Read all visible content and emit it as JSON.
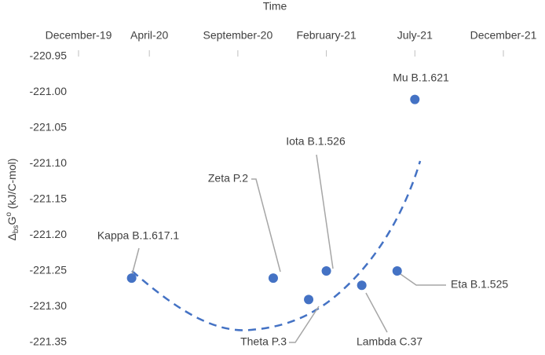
{
  "chart_data": {
    "type": "scatter",
    "xlabel": "Time",
    "ylabel": [
      "Δ",
      "bs",
      "G",
      "o",
      " (kJ/C-mol)"
    ],
    "xlim": [
      "2019-12",
      "2021-12"
    ],
    "xticks": [
      {
        "value": "2019-12",
        "label": "December-19"
      },
      {
        "value": "2020-04",
        "label": "April-20"
      },
      {
        "value": "2020-09",
        "label": "September-20"
      },
      {
        "value": "2021-02",
        "label": "February-21"
      },
      {
        "value": "2021-07",
        "label": "July-21"
      },
      {
        "value": "2021-12",
        "label": "December-21"
      }
    ],
    "ylim": [
      -221.35,
      -220.95
    ],
    "yticks": [
      -220.95,
      {
        "value": -221,
        "label": "-221.00"
      },
      -221.05,
      {
        "value": -221.1,
        "label": "-221.10"
      },
      -221.15,
      {
        "value": -221.2,
        "label": "-221.20"
      },
      -221.25,
      {
        "value": -221.3,
        "label": "-221.30"
      },
      -221.35
    ],
    "color": "#4472c4",
    "labels": [
      "Kappa B.1.617.1",
      "Zeta P.2",
      "Iota B.1.526",
      "Mu B.1.621",
      "Eta B.1.525",
      "Theta P.3",
      "Lambda C.37"
    ],
    "x": [
      "2020-03",
      "2020-11",
      "2021-02",
      "2021-07",
      "2021-06",
      "2021-01",
      "2021-04"
    ],
    "values": [
      -221.26,
      -221.26,
      -221.25,
      -221.01,
      -221.25,
      -221.29,
      -221.27
    ]
  }
}
